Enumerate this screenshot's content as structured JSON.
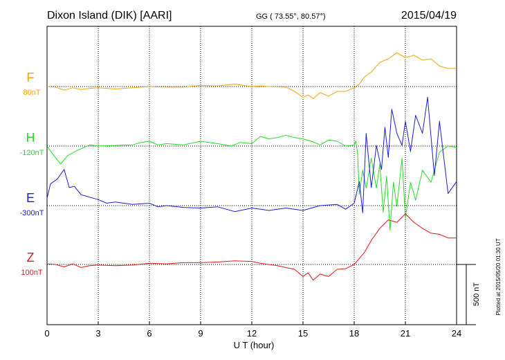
{
  "chart_data": {
    "type": "line",
    "title": "Dixon Island (DIK)  [AARI]",
    "coords": "GG ( 73.55°,  80.57°)",
    "date": "2015/04/19",
    "xlabel": "U T (hour)",
    "xlim": [
      0,
      24
    ],
    "xticks": [
      "0",
      "3",
      "6",
      "9",
      "12",
      "15",
      "18",
      "21",
      "24"
    ],
    "scale_label": "500 nT",
    "plotted_note": "Plotted at 2015/05/20 01:30 UT",
    "grid": "dotted",
    "series": [
      {
        "name": "F",
        "offset": "80nT",
        "color": "#f5a300",
        "x": [
          0,
          0.5,
          1,
          1.5,
          2,
          2.5,
          3,
          4,
          5,
          6,
          7,
          8,
          9,
          10,
          11,
          12,
          12.5,
          13,
          14,
          14.5,
          15,
          15.3,
          15.6,
          16,
          16.5,
          17,
          17.5,
          18,
          18.3,
          18.6,
          19,
          19.5,
          20,
          20.5,
          21,
          21.5,
          22,
          22.5,
          23,
          23.5,
          24
        ],
        "y": [
          0,
          -5,
          -30,
          -10,
          -25,
          -15,
          -10,
          -20,
          -10,
          0,
          -5,
          -5,
          10,
          5,
          20,
          0,
          5,
          0,
          -5,
          -40,
          -90,
          -70,
          -100,
          -50,
          -80,
          -40,
          -40,
          -10,
          20,
          80,
          120,
          200,
          230,
          280,
          240,
          260,
          220,
          230,
          170,
          150,
          150
        ]
      },
      {
        "name": "H",
        "offset": "-120nT",
        "color": "#22dd22",
        "x": [
          0,
          0.3,
          0.8,
          1.2,
          1.7,
          2.5,
          3,
          4,
          5,
          5.5,
          6,
          6.5,
          7,
          8,
          9,
          10,
          10.8,
          11.3,
          12,
          12.5,
          13,
          13.5,
          14,
          14.5,
          15,
          15.5,
          16,
          16.5,
          17,
          17.5,
          18,
          18.1,
          18.2,
          18.3,
          18.5,
          18.7,
          19,
          19.3,
          19.5,
          19.7,
          19.9,
          20.1,
          20.3,
          20.5,
          20.8,
          21,
          21.3,
          21.6,
          22,
          22.5,
          23,
          23.5,
          24
        ],
        "y": [
          0,
          -60,
          -150,
          -80,
          -40,
          10,
          0,
          5,
          10,
          30,
          40,
          10,
          20,
          10,
          40,
          20,
          0,
          30,
          20,
          80,
          60,
          70,
          90,
          70,
          60,
          40,
          10,
          50,
          40,
          0,
          10,
          40,
          -60,
          -400,
          -200,
          -350,
          -100,
          -350,
          -150,
          -550,
          -250,
          -700,
          -300,
          -500,
          -100,
          -600,
          -300,
          -450,
          -200,
          -300,
          -50,
          0,
          -10
        ]
      },
      {
        "name": "E",
        "offset": "-300nT",
        "color": "#1a1ae0",
        "x": [
          0,
          0.2,
          0.6,
          1,
          1.3,
          1.6,
          2,
          2.5,
          3,
          3.5,
          4,
          5,
          6,
          6.5,
          7,
          8,
          9,
          10,
          11,
          12,
          13,
          14,
          15,
          16,
          17,
          17.5,
          18,
          18.3,
          18.5,
          18.7,
          19,
          19.3,
          19.6,
          19.8,
          20,
          20.2,
          20.5,
          20.8,
          21,
          21.3,
          21.6,
          22,
          22.3,
          22.7,
          23,
          23.5,
          24
        ],
        "y": [
          60,
          180,
          220,
          300,
          150,
          160,
          90,
          70,
          50,
          20,
          30,
          10,
          20,
          -10,
          0,
          -15,
          -20,
          -10,
          -50,
          -20,
          -40,
          -20,
          -40,
          0,
          10,
          -30,
          20,
          200,
          -60,
          600,
          150,
          500,
          300,
          650,
          400,
          800,
          600,
          500,
          700,
          450,
          750,
          600,
          900,
          250,
          700,
          100,
          200
        ]
      },
      {
        "name": "Z",
        "offset": "100nT",
        "color": "#e01818",
        "x": [
          0,
          0.5,
          1,
          1.5,
          2,
          2.5,
          3,
          4,
          5,
          6,
          7,
          8,
          9,
          10,
          11,
          12,
          12.5,
          13,
          13.5,
          14,
          14.5,
          15,
          15.3,
          15.6,
          16,
          16.5,
          17,
          17.5,
          18,
          18.3,
          18.6,
          19,
          19.5,
          20,
          20.5,
          21,
          21.5,
          22,
          22.5,
          23,
          23.5,
          24
        ],
        "y": [
          5,
          0,
          -20,
          5,
          -25,
          -10,
          -5,
          -10,
          -5,
          10,
          5,
          15,
          15,
          20,
          30,
          25,
          10,
          0,
          -10,
          -25,
          -40,
          -100,
          -70,
          -130,
          -80,
          -100,
          -40,
          -35,
          0,
          50,
          100,
          200,
          300,
          370,
          350,
          420,
          350,
          300,
          260,
          250,
          220,
          220
        ]
      }
    ]
  }
}
